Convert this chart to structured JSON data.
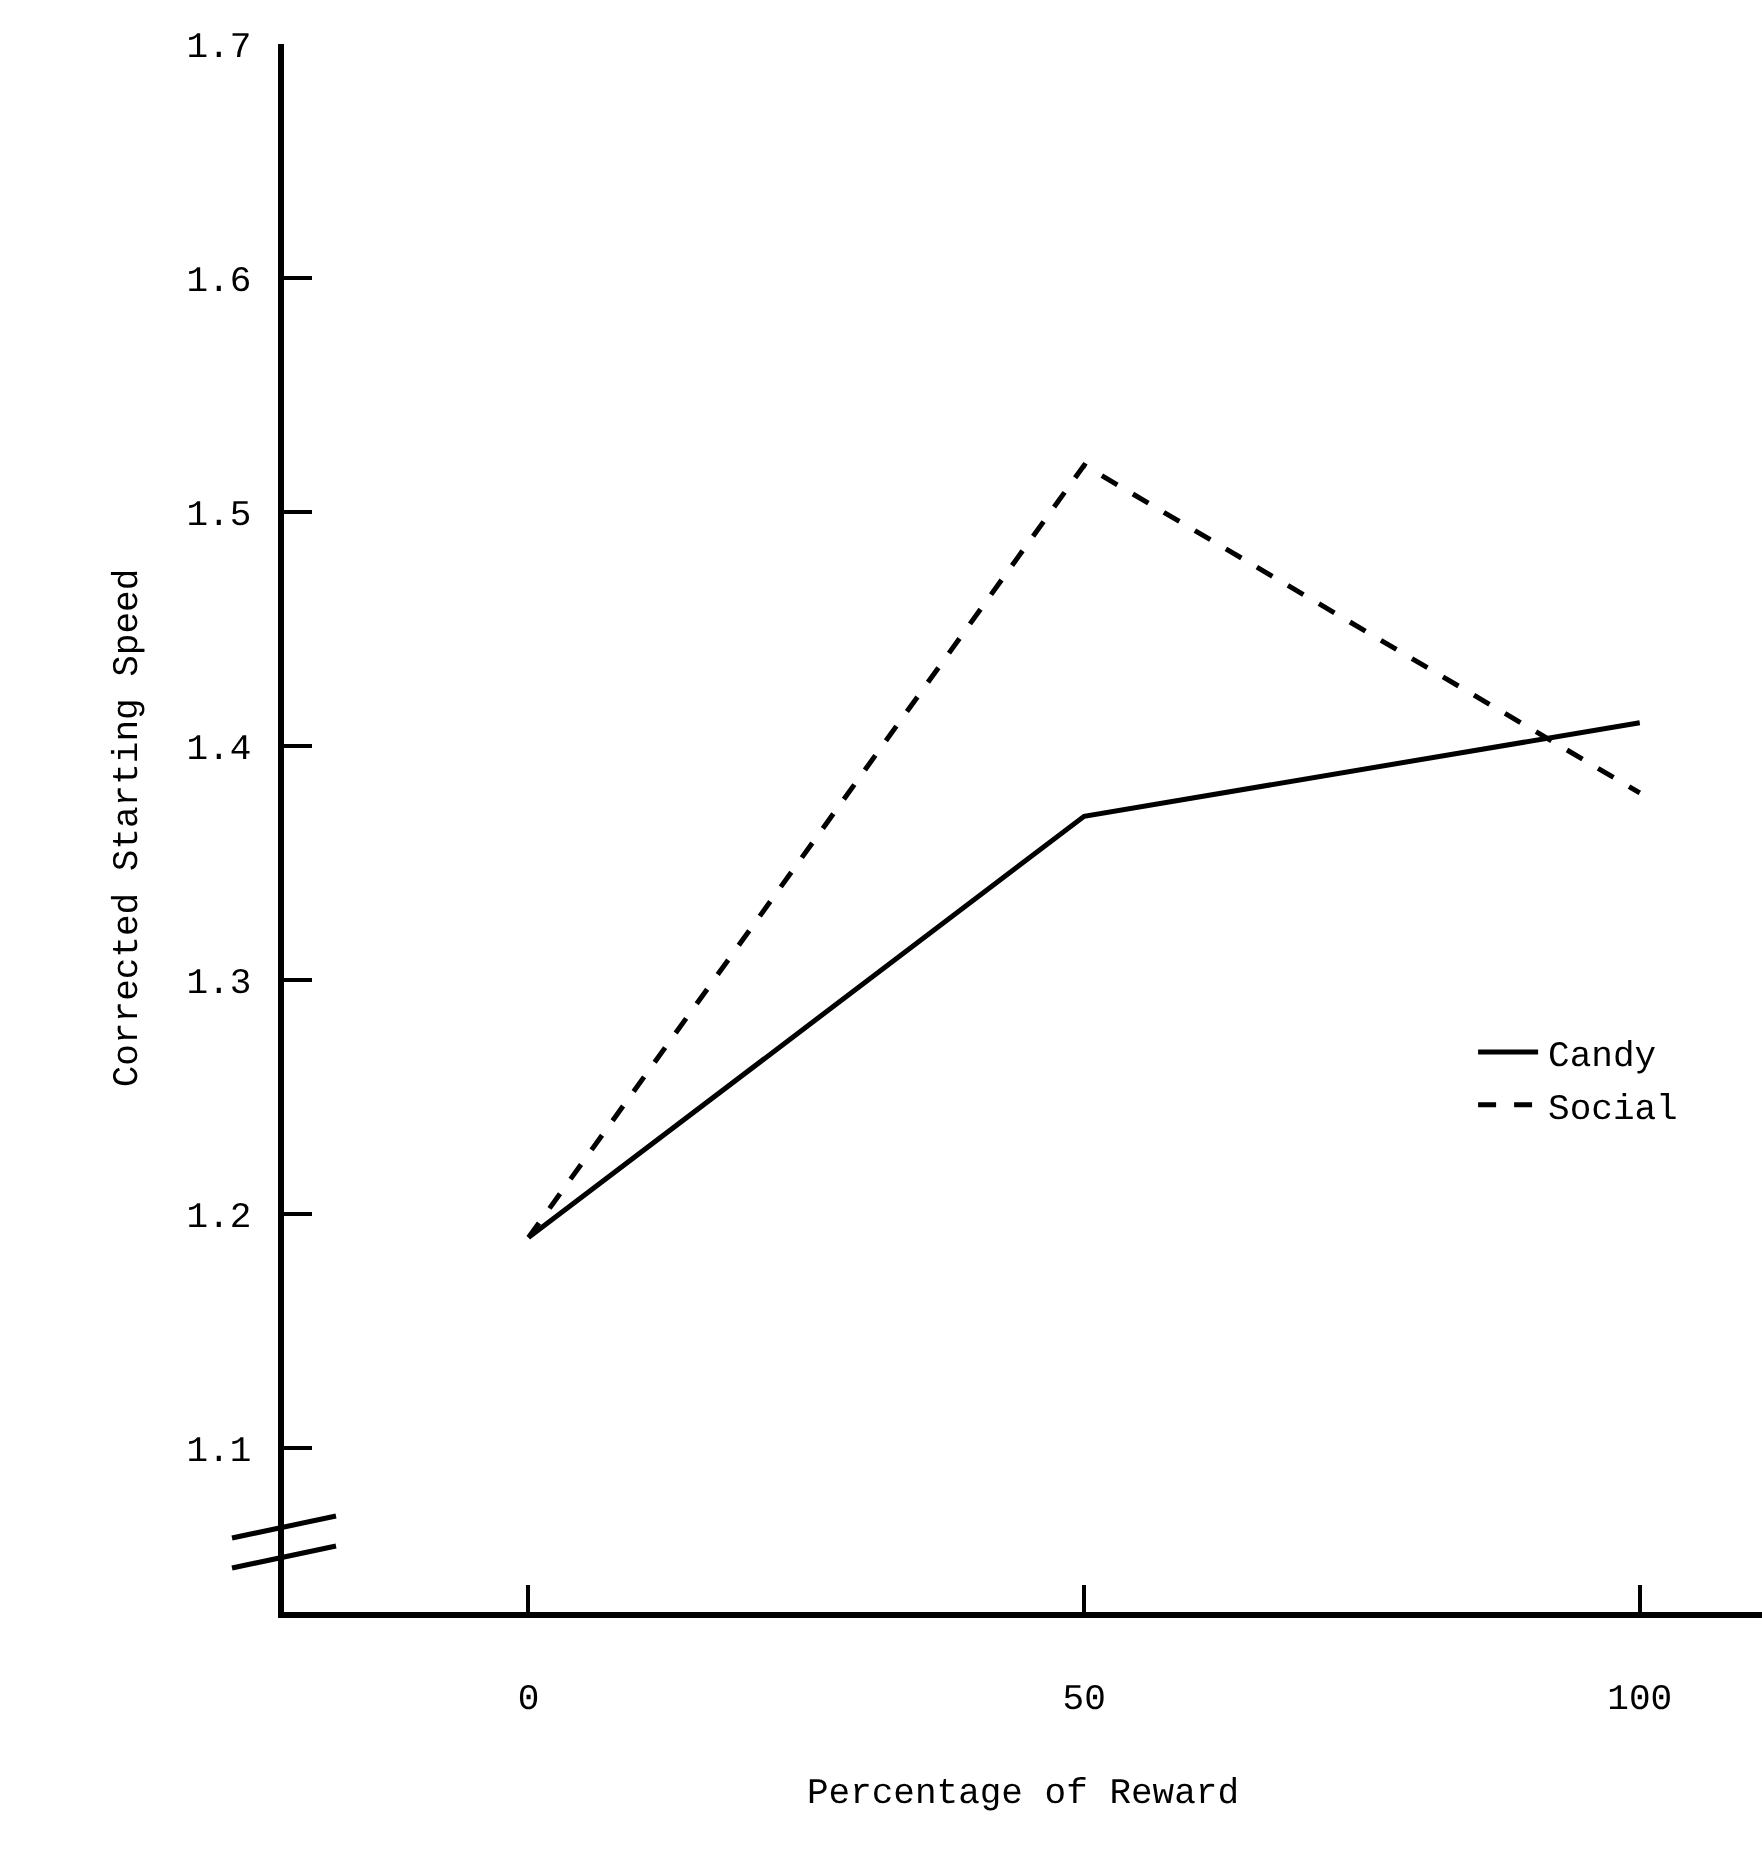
{
  "chart_data": {
    "type": "line",
    "xlabel": "Percentage of Reward",
    "ylabel": "Corrected Starting Speed",
    "x": [
      0,
      50,
      100
    ],
    "series": [
      {
        "name": "Candy",
        "color": "#000000",
        "line_style": "solid",
        "values": [
          1.19,
          1.37,
          1.41
        ]
      },
      {
        "name": "Social",
        "color": "#000000",
        "line_style": "dashed",
        "values": [
          1.19,
          1.52,
          1.38
        ]
      }
    ],
    "xlim": [
      -22,
      111
    ],
    "xticks": [
      0,
      50,
      100
    ],
    "ylim": [
      1.03,
      1.7
    ],
    "yticks": [
      1.1,
      1.2,
      1.3,
      1.4,
      1.5,
      1.6,
      1.7
    ],
    "grid": false,
    "legend": "bottom right",
    "marker": "none"
  }
}
